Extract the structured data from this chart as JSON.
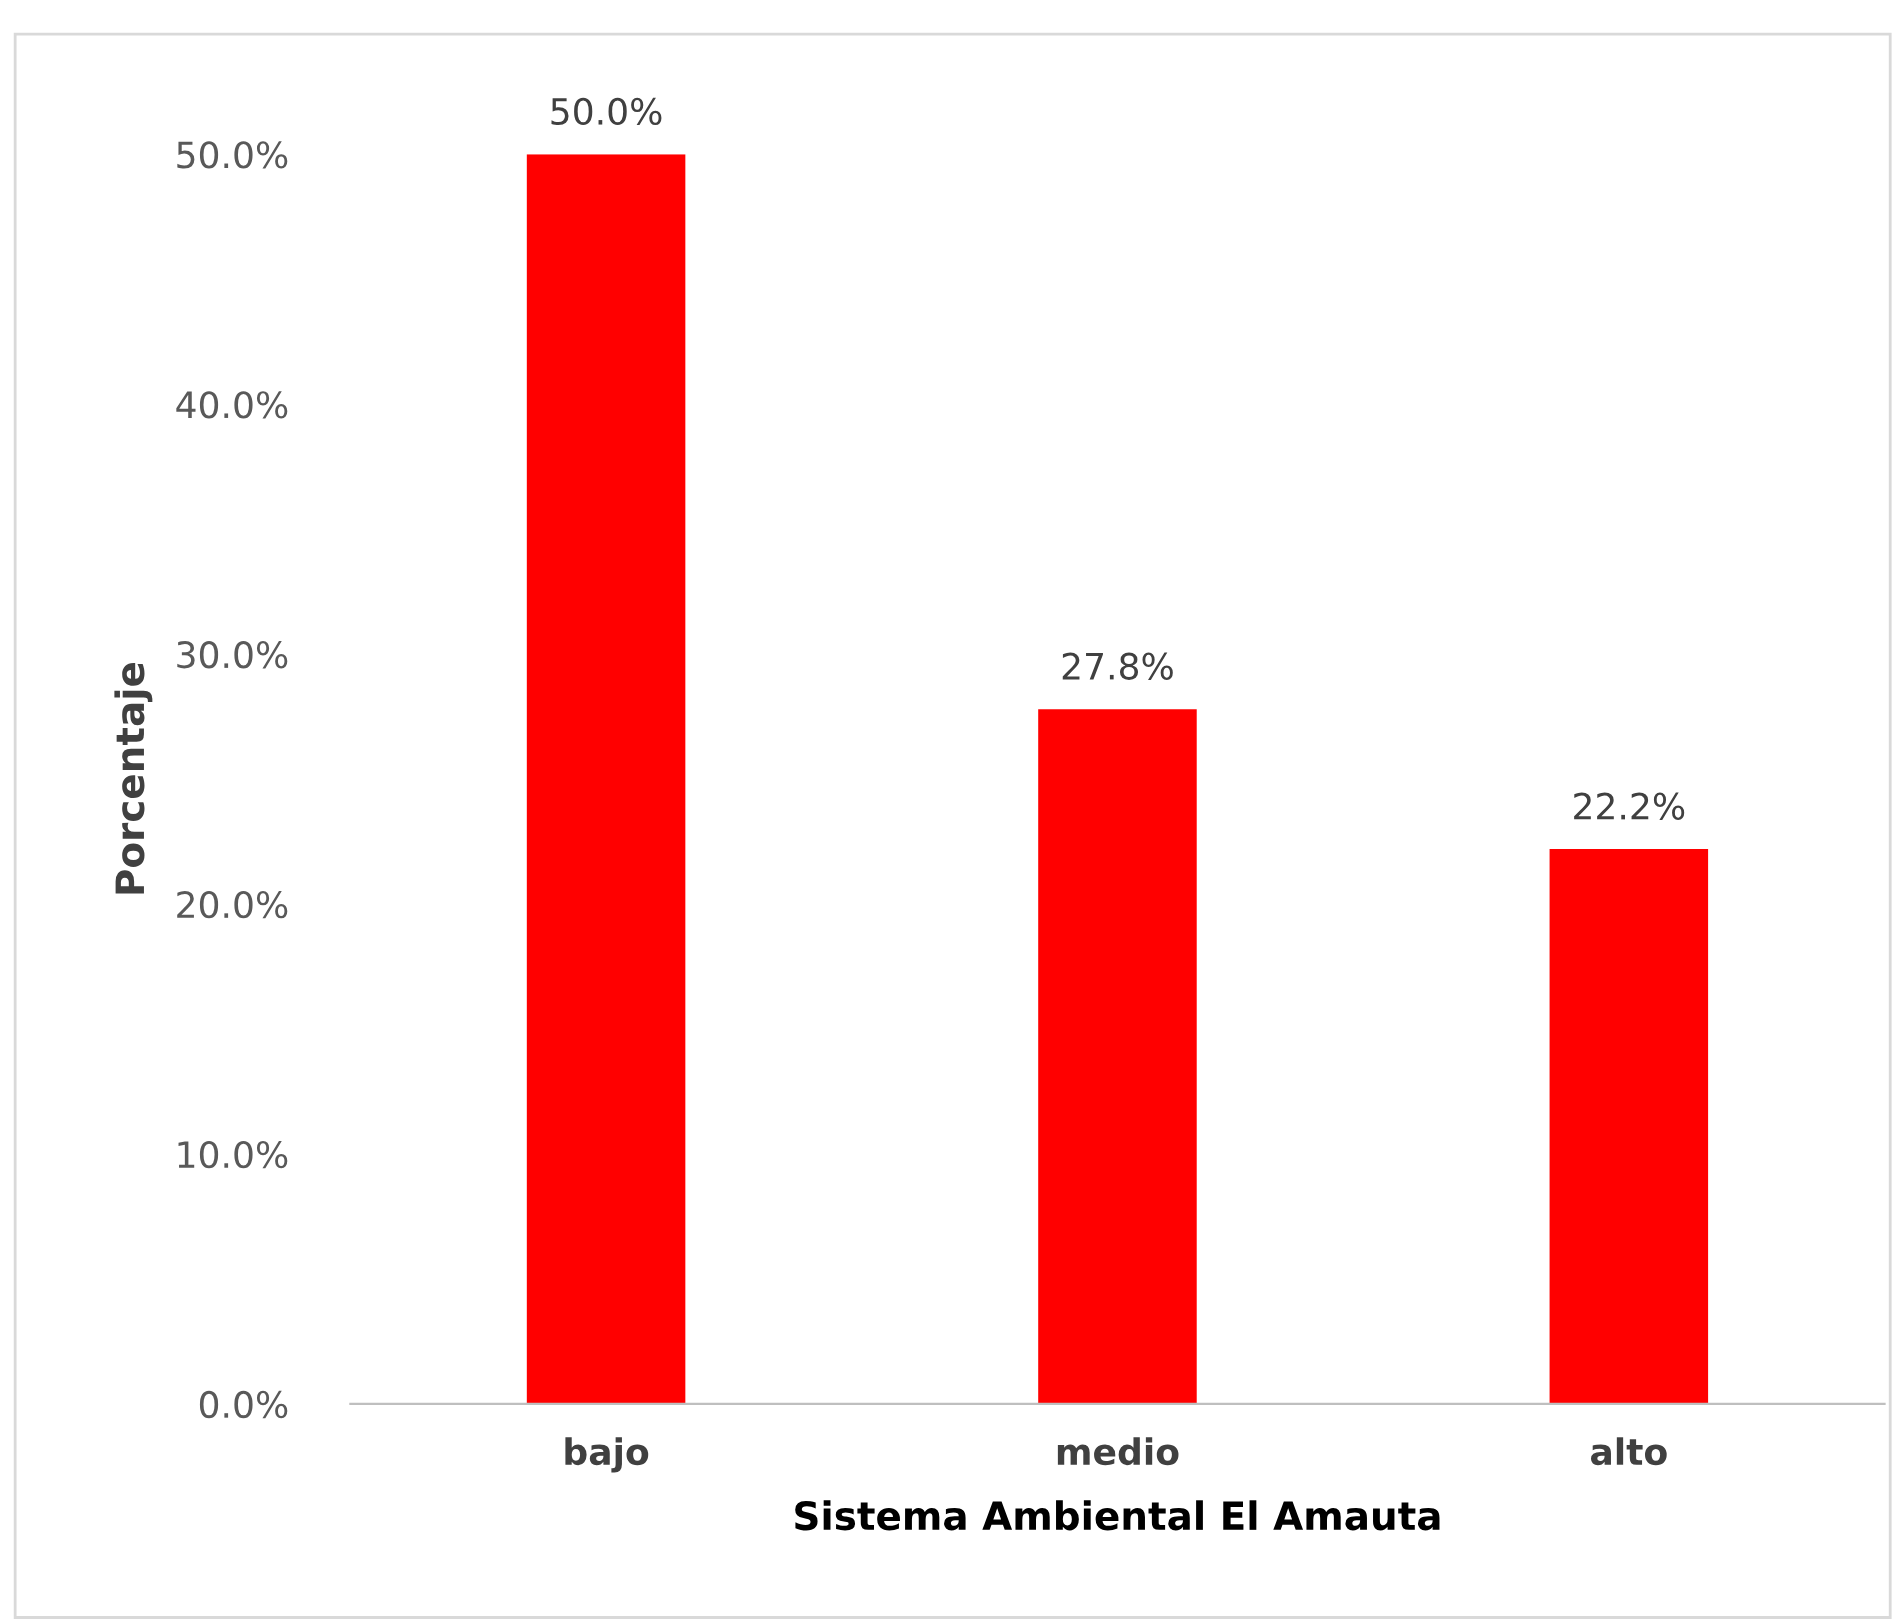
{
  "chart_data": {
    "type": "bar",
    "xlabel": "Sistema Ambiental El Amauta",
    "ylabel": "Porcentaje",
    "categories": [
      "bajo",
      "medio",
      "alto"
    ],
    "values": [
      50.0,
      27.8,
      22.2
    ],
    "value_labels": [
      "50.0%",
      "27.8%",
      "22.2%"
    ],
    "color": "#ff0000",
    "ylim": [
      0,
      50
    ],
    "yticks": [
      {
        "value": 0,
        "label": "0.0%"
      },
      {
        "value": 10,
        "label": "10.0%"
      },
      {
        "value": 20,
        "label": "20.0%"
      },
      {
        "value": 30,
        "label": "30.0%"
      },
      {
        "value": 40,
        "label": "40.0%"
      },
      {
        "value": 50,
        "label": "50.0%"
      }
    ],
    "grid": false
  }
}
